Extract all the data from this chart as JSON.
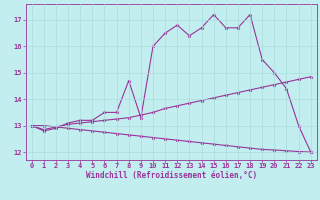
{
  "xlabel": "Windchill (Refroidissement éolien,°C)",
  "bg_color": "#c2eef0",
  "line_color": "#993399",
  "grid_color": "#aadddd",
  "xlim": [
    -0.5,
    23.5
  ],
  "ylim": [
    11.7,
    17.6
  ],
  "yticks": [
    12,
    13,
    14,
    15,
    16,
    17
  ],
  "xticks": [
    0,
    1,
    2,
    3,
    4,
    5,
    6,
    7,
    8,
    9,
    10,
    11,
    12,
    13,
    14,
    15,
    16,
    17,
    18,
    19,
    20,
    21,
    22,
    23
  ],
  "series1": [
    13.0,
    12.8,
    12.9,
    13.1,
    13.2,
    13.2,
    13.5,
    13.5,
    14.7,
    13.3,
    16.0,
    16.5,
    16.8,
    16.4,
    16.7,
    17.2,
    16.7,
    16.7,
    17.2,
    15.5,
    15.0,
    14.4,
    13.0,
    12.0
  ],
  "series2": [
    13.0,
    12.85,
    12.95,
    13.05,
    13.1,
    13.15,
    13.2,
    13.25,
    13.3,
    13.4,
    13.5,
    13.65,
    13.75,
    13.85,
    13.95,
    14.05,
    14.15,
    14.25,
    14.35,
    14.45,
    14.55,
    14.65,
    14.75,
    14.85
  ],
  "series3": [
    13.0,
    13.0,
    12.95,
    12.9,
    12.85,
    12.8,
    12.75,
    12.7,
    12.65,
    12.6,
    12.55,
    12.5,
    12.45,
    12.4,
    12.35,
    12.3,
    12.25,
    12.2,
    12.15,
    12.1,
    12.08,
    12.05,
    12.02,
    12.0
  ],
  "marker_size": 2.5,
  "line_width": 0.8,
  "xlabel_fontsize": 5.5,
  "tick_fontsize": 5.0
}
